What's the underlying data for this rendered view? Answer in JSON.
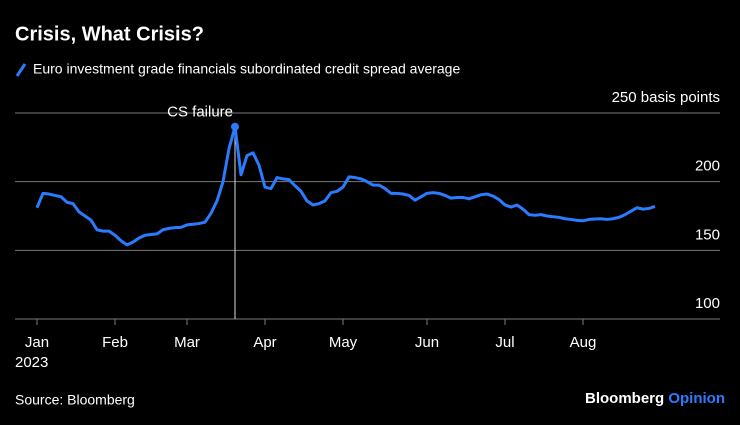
{
  "chart_data": {
    "type": "line",
    "title": "Crisis, What Crisis?",
    "source": "Source: Bloomberg",
    "brand": {
      "name": "Bloomberg",
      "section": "Opinion"
    },
    "categories": [
      "Jan",
      null,
      null,
      null,
      null,
      null,
      null,
      null,
      null,
      null,
      null,
      null,
      null,
      "Feb",
      null,
      null,
      null,
      null,
      null,
      null,
      null,
      null,
      null,
      null,
      null,
      "Mar",
      null,
      null,
      null,
      null,
      null,
      null,
      null,
      null,
      null,
      null,
      null,
      null,
      "Apr",
      null,
      null,
      null,
      null,
      null,
      null,
      null,
      null,
      null,
      null,
      null,
      null,
      "May",
      null,
      null,
      null,
      null,
      null,
      null,
      null,
      null,
      null,
      null,
      null,
      null,
      null,
      "Jun",
      null,
      null,
      null,
      null,
      null,
      null,
      null,
      null,
      null,
      null,
      null,
      null,
      "Jul",
      null,
      null,
      null,
      null,
      null,
      null,
      null,
      null,
      null,
      null,
      null,
      null,
      "Aug",
      null,
      null,
      null,
      null,
      null,
      null,
      null,
      null,
      null,
      null,
      null,
      null
    ],
    "x_year_label": "2023",
    "series": [
      {
        "name": "Euro investment grade financials subordinated credit spread average",
        "color": "#2b7bff",
        "values": [
          181,
          191.5,
          191,
          190,
          189,
          185,
          184,
          178,
          175,
          172,
          165,
          164,
          164,
          161,
          157,
          154,
          156,
          159,
          161,
          161.5,
          162,
          165,
          166,
          166.5,
          166.7,
          168.5,
          169,
          169.5,
          170.5,
          177,
          186,
          200,
          224,
          240,
          205,
          219,
          221,
          212,
          196,
          195,
          203,
          202,
          201.5,
          197,
          193,
          186,
          183,
          184,
          186,
          192,
          193,
          196,
          203.5,
          203,
          202,
          200,
          197.5,
          197.5,
          195,
          191.5,
          191.5,
          191,
          190,
          186.5,
          189,
          191.5,
          192,
          191.5,
          190,
          188,
          188.5,
          188.5,
          187.5,
          189,
          190.5,
          191,
          189.5,
          187,
          183,
          181.5,
          183,
          180,
          176,
          175.5,
          176,
          175,
          174.5,
          174,
          173,
          172.5,
          171.8,
          171.5,
          172.5,
          172.8,
          173,
          172.5,
          173,
          174,
          176,
          178.5,
          181,
          180,
          180.5,
          182
        ]
      }
    ],
    "annotation": {
      "text": "CS failure",
      "value": 240
    },
    "ylim": [
      100,
      250
    ],
    "yticks": [
      100,
      150,
      200,
      {
        "value": 250,
        "label": "250 basis points"
      }
    ],
    "grid": true
  }
}
